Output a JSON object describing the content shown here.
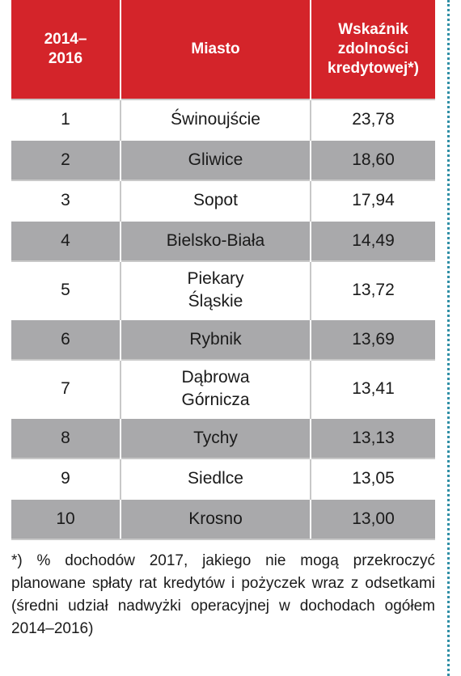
{
  "table": {
    "headers": [
      "2014–\n2016",
      "Miasto",
      "Wskaźnik\nzdolności\nkredytowej*)"
    ],
    "rows": [
      {
        "rank": "1",
        "city": "Świnoujście",
        "value": "23,78"
      },
      {
        "rank": "2",
        "city": "Gliwice",
        "value": "18,60"
      },
      {
        "rank": "3",
        "city": "Sopot",
        "value": "17,94"
      },
      {
        "rank": "4",
        "city": "Bielsko-Biała",
        "value": "14,49"
      },
      {
        "rank": "5",
        "city": "Piekary\nŚląskie",
        "value": "13,72"
      },
      {
        "rank": "6",
        "city": "Rybnik",
        "value": "13,69"
      },
      {
        "rank": "7",
        "city": "Dąbrowa\nGórnicza",
        "value": "13,41"
      },
      {
        "rank": "8",
        "city": "Tychy",
        "value": "13,13"
      },
      {
        "rank": "9",
        "city": "Siedlce",
        "value": "13,05"
      },
      {
        "rank": "10",
        "city": "Krosno",
        "value": "13,00"
      }
    ]
  },
  "footnote": "*)  % dochodów 2017, jakiego nie mogą przekroczyć planowane spłaty rat kredytów i pożyczek wraz z odsetkami (średni udział nadwyżki operacyjnej w dochodach ogółem 2014–2016)",
  "colors": {
    "header_red": "#d4242a",
    "stripe_gray": "#a9a9ab",
    "dotted_rule": "#2f8fa6"
  }
}
